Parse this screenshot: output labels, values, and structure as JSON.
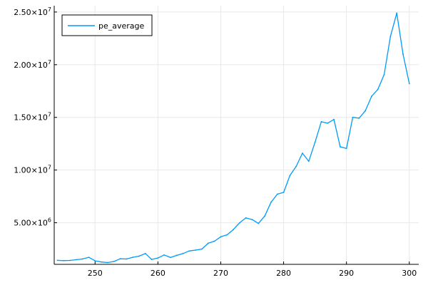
{
  "chart_data": {
    "type": "line",
    "title": "",
    "xlabel": "",
    "ylabel": "",
    "xlim": [
      243.5,
      301.5
    ],
    "ylim": [
      1050000,
      25600000
    ],
    "grid": true,
    "legend_position": "top-left",
    "x_ticks": [
      {
        "value": 250,
        "label": "250"
      },
      {
        "value": 260,
        "label": "260"
      },
      {
        "value": 270,
        "label": "270"
      },
      {
        "value": 280,
        "label": "280"
      },
      {
        "value": 290,
        "label": "290"
      },
      {
        "value": 300,
        "label": "300"
      }
    ],
    "y_ticks": [
      {
        "value": 5000000,
        "mantissa": "5.00×10",
        "exp": "6"
      },
      {
        "value": 10000000,
        "mantissa": "1.00×10",
        "exp": "7"
      },
      {
        "value": 15000000,
        "mantissa": "1.50×10",
        "exp": "7"
      },
      {
        "value": 20000000,
        "mantissa": "2.00×10",
        "exp": "7"
      },
      {
        "value": 25000000,
        "mantissa": "2.50×10",
        "exp": "7"
      }
    ],
    "colors": {
      "series": "#009AFA",
      "grid": "#e8e8e8",
      "axis": "#000000"
    },
    "series": [
      {
        "name": "pe_average",
        "x": [
          244,
          245,
          246,
          247,
          248,
          249,
          250,
          251,
          252,
          253,
          254,
          255,
          256,
          257,
          258,
          259,
          260,
          261,
          262,
          263,
          264,
          265,
          266,
          267,
          268,
          269,
          270,
          271,
          272,
          273,
          274,
          275,
          276,
          277,
          278,
          279,
          280,
          281,
          282,
          283,
          284,
          285,
          286,
          287,
          288,
          289,
          290,
          291,
          292,
          293,
          294,
          295,
          296,
          297,
          298,
          299,
          300
        ],
        "y": [
          1430000,
          1400000,
          1420000,
          1490000,
          1560000,
          1720000,
          1380000,
          1270000,
          1220000,
          1320000,
          1580000,
          1560000,
          1720000,
          1830000,
          2080000,
          1520000,
          1650000,
          1940000,
          1700000,
          1900000,
          2080000,
          2320000,
          2400000,
          2500000,
          3050000,
          3250000,
          3670000,
          3850000,
          4350000,
          4990000,
          5460000,
          5300000,
          4930000,
          5630000,
          6950000,
          7710000,
          7880000,
          9480000,
          10350000,
          11600000,
          10830000,
          12630000,
          14580000,
          14450000,
          14800000,
          12210000,
          12050000,
          15000000,
          14920000,
          15620000,
          17000000,
          17650000,
          19050000,
          22700000,
          24900000,
          21000000,
          18200000
        ]
      }
    ]
  }
}
